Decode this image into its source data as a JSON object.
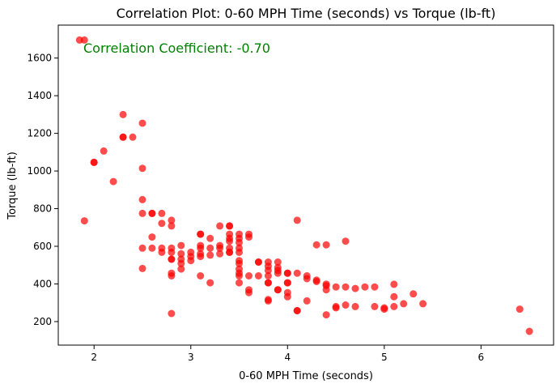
{
  "chart_data": {
    "type": "scatter",
    "title": "Correlation Plot: 0-60 MPH Time (seconds) vs Torque (lb-ft)",
    "xlabel": "0-60 MPH Time (seconds)",
    "ylabel": "Torque (lb-ft)",
    "xlim": [
      1.63,
      6.75
    ],
    "ylim": [
      75,
      1775
    ],
    "xticks": [
      2,
      3,
      4,
      5,
      6
    ],
    "yticks": [
      200,
      400,
      600,
      800,
      1000,
      1200,
      1400,
      1600
    ],
    "grid": false,
    "annotation": {
      "text": "Correlation Coefficient: -0.70",
      "color": "#008000"
    },
    "point_color": "#ff0000",
    "points": [
      [
        1.85,
        1696
      ],
      [
        1.9,
        1696
      ],
      [
        1.9,
        735
      ],
      [
        2.0,
        1046
      ],
      [
        2.0,
        1046
      ],
      [
        2.1,
        1106
      ],
      [
        2.2,
        944
      ],
      [
        2.3,
        1300
      ],
      [
        2.3,
        1180
      ],
      [
        2.3,
        1180
      ],
      [
        2.4,
        1180
      ],
      [
        2.5,
        1254
      ],
      [
        2.5,
        1014
      ],
      [
        2.5,
        848
      ],
      [
        2.5,
        775
      ],
      [
        2.5,
        590
      ],
      [
        2.5,
        482
      ],
      [
        2.6,
        775
      ],
      [
        2.6,
        775
      ],
      [
        2.6,
        649
      ],
      [
        2.6,
        590
      ],
      [
        2.7,
        775
      ],
      [
        2.7,
        722
      ],
      [
        2.7,
        590
      ],
      [
        2.7,
        568
      ],
      [
        2.8,
        738
      ],
      [
        2.8,
        708
      ],
      [
        2.8,
        590
      ],
      [
        2.8,
        568
      ],
      [
        2.8,
        531
      ],
      [
        2.8,
        531
      ],
      [
        2.8,
        457
      ],
      [
        2.8,
        443
      ],
      [
        2.8,
        243
      ],
      [
        2.9,
        604
      ],
      [
        2.9,
        560
      ],
      [
        2.9,
        531
      ],
      [
        2.9,
        509
      ],
      [
        2.9,
        479
      ],
      [
        3.0,
        568
      ],
      [
        3.0,
        546
      ],
      [
        3.0,
        524
      ],
      [
        3.1,
        664
      ],
      [
        3.1,
        664
      ],
      [
        3.1,
        604
      ],
      [
        3.1,
        590
      ],
      [
        3.1,
        560
      ],
      [
        3.1,
        546
      ],
      [
        3.1,
        443
      ],
      [
        3.2,
        642
      ],
      [
        3.2,
        590
      ],
      [
        3.2,
        553
      ],
      [
        3.2,
        406
      ],
      [
        3.3,
        708
      ],
      [
        3.3,
        604
      ],
      [
        3.3,
        590
      ],
      [
        3.3,
        560
      ],
      [
        3.4,
        708
      ],
      [
        3.4,
        708
      ],
      [
        3.4,
        664
      ],
      [
        3.4,
        642
      ],
      [
        3.4,
        627
      ],
      [
        3.4,
        590
      ],
      [
        3.4,
        568
      ],
      [
        3.4,
        568
      ],
      [
        3.5,
        664
      ],
      [
        3.5,
        642
      ],
      [
        3.5,
        620
      ],
      [
        3.5,
        590
      ],
      [
        3.5,
        568
      ],
      [
        3.5,
        524
      ],
      [
        3.5,
        509
      ],
      [
        3.5,
        479
      ],
      [
        3.5,
        457
      ],
      [
        3.5,
        443
      ],
      [
        3.5,
        406
      ],
      [
        3.6,
        664
      ],
      [
        3.6,
        649
      ],
      [
        3.6,
        443
      ],
      [
        3.6,
        369
      ],
      [
        3.6,
        354
      ],
      [
        3.7,
        516
      ],
      [
        3.7,
        516
      ],
      [
        3.7,
        443
      ],
      [
        3.8,
        516
      ],
      [
        3.8,
        494
      ],
      [
        3.8,
        472
      ],
      [
        3.8,
        443
      ],
      [
        3.8,
        406
      ],
      [
        3.8,
        406
      ],
      [
        3.8,
        317
      ],
      [
        3.8,
        310
      ],
      [
        3.9,
        516
      ],
      [
        3.9,
        487
      ],
      [
        3.9,
        472
      ],
      [
        3.9,
        457
      ],
      [
        3.9,
        369
      ],
      [
        3.9,
        369
      ],
      [
        4.0,
        457
      ],
      [
        4.0,
        457
      ],
      [
        4.0,
        406
      ],
      [
        4.0,
        406
      ],
      [
        4.0,
        354
      ],
      [
        4.0,
        332
      ],
      [
        4.1,
        738
      ],
      [
        4.1,
        457
      ],
      [
        4.1,
        258
      ],
      [
        4.1,
        258
      ],
      [
        4.2,
        443
      ],
      [
        4.2,
        428
      ],
      [
        4.2,
        310
      ],
      [
        4.3,
        608
      ],
      [
        4.3,
        420
      ],
      [
        4.3,
        413
      ],
      [
        4.4,
        608
      ],
      [
        4.4,
        399
      ],
      [
        4.4,
        391
      ],
      [
        4.4,
        369
      ],
      [
        4.4,
        236
      ],
      [
        4.5,
        384
      ],
      [
        4.5,
        280
      ],
      [
        4.5,
        273
      ],
      [
        4.6,
        627
      ],
      [
        4.6,
        384
      ],
      [
        4.6,
        288
      ],
      [
        4.7,
        376
      ],
      [
        4.7,
        280
      ],
      [
        4.8,
        384
      ],
      [
        4.9,
        384
      ],
      [
        4.9,
        280
      ],
      [
        5.0,
        273
      ],
      [
        5.0,
        266
      ],
      [
        5.1,
        398
      ],
      [
        5.1,
        332
      ],
      [
        5.1,
        280
      ],
      [
        5.2,
        295
      ],
      [
        5.3,
        347
      ],
      [
        5.4,
        295
      ],
      [
        6.4,
        266
      ],
      [
        6.5,
        148
      ]
    ]
  }
}
